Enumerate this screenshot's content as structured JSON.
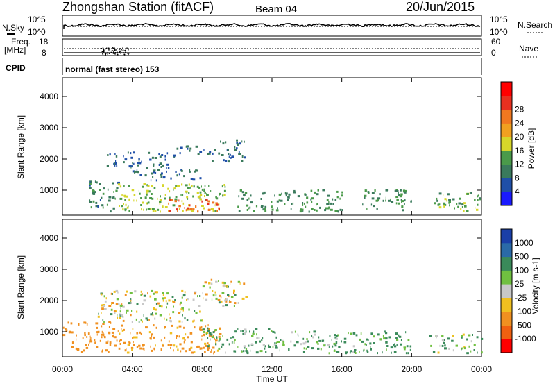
{
  "header": {
    "station": "Zhongshan Station (fitACF)",
    "beam": "Beam 04",
    "date": "20/Jun/2015"
  },
  "panels": {
    "nsky_label": "N.Sky",
    "nsky_top": "10^5",
    "nsky_bottom": "10^0",
    "nsearch_label": "N.Search",
    "nsearch_top": "10^5",
    "nsearch_bottom": "10^0",
    "freq_label": "Freq.",
    "freq_unit": "[MHz]",
    "freq_top": "18",
    "freq_bottom": "8",
    "nave_label": "Nave",
    "nave_top": "60",
    "nave_bottom": "0",
    "cpid_label": "CPID",
    "cpid_text": "normal (fast stereo) 153"
  },
  "chart_data": [
    {
      "type": "heatmap",
      "title": "",
      "ylabel": "Slant Range [km]",
      "xlabel": "",
      "ylim": [
        200,
        4600
      ],
      "xlim": [
        0,
        24
      ],
      "yticks": [
        "1000",
        "2000",
        "3000",
        "4000"
      ],
      "colorbar": {
        "label": "Power [dB]",
        "ticks": [
          "4",
          "8",
          "12",
          "16",
          "20",
          "24",
          "28"
        ],
        "colors": [
          "#1a1aff",
          "#1f4fa8",
          "#3a7a5c",
          "#4a9a4a",
          "#d6d62a",
          "#f0a020",
          "#f07820",
          "#e83020",
          "#ff0000"
        ]
      },
      "regions": [
        {
          "t": [
            1.5,
            3.2
          ],
          "range": [
            300,
            1300
          ],
          "power": 10
        },
        {
          "t": [
            3.0,
            9.5
          ],
          "range": [
            300,
            1200
          ],
          "power": 16
        },
        {
          "t": [
            6.0,
            9.0
          ],
          "range": [
            300,
            700
          ],
          "power": 28
        },
        {
          "t": [
            4.0,
            8.0
          ],
          "range": [
            1300,
            1700
          ],
          "power": 8
        },
        {
          "t": [
            2.5,
            6.5
          ],
          "range": [
            1700,
            2200
          ],
          "power": 8
        },
        {
          "t": [
            6.5,
            8.5
          ],
          "range": [
            2100,
            2400
          ],
          "power": 8
        },
        {
          "t": [
            8.5,
            10.5
          ],
          "range": [
            1900,
            2600
          ],
          "power": 8
        },
        {
          "t": [
            10.0,
            16.0
          ],
          "range": [
            300,
            1000
          ],
          "power": 12
        },
        {
          "t": [
            17.0,
            20.0
          ],
          "range": [
            300,
            1000
          ],
          "power": 12
        },
        {
          "t": [
            21.0,
            24.0
          ],
          "range": [
            300,
            900
          ],
          "power": 14
        }
      ]
    },
    {
      "type": "heatmap",
      "title": "",
      "ylabel": "Slant Range [km]",
      "xlabel": "Time UT",
      "ylim": [
        200,
        4600
      ],
      "xlim": [
        0,
        24
      ],
      "yticks": [
        "1000",
        "2000",
        "3000",
        "4000"
      ],
      "xticks": [
        "00:00",
        "04:00",
        "08:00",
        "12:00",
        "16:00",
        "20:00",
        "00:00"
      ],
      "colorbar": {
        "label": "Velocity [m s-1]",
        "ticks": [
          "1000",
          "500",
          "100",
          "25",
          "-25",
          "-100",
          "-500",
          "-1000"
        ],
        "colors": [
          "#1a3fa8",
          "#2a6aa8",
          "#3a8a5a",
          "#70c040",
          "#c8c8c8",
          "#f0c020",
          "#f09020",
          "#f06010",
          "#ff0000"
        ]
      },
      "regions": [
        {
          "t": [
            0.0,
            3.0
          ],
          "range": [
            300,
            1300
          ],
          "velocity": -300
        },
        {
          "t": [
            3.0,
            9.0
          ],
          "range": [
            300,
            1200
          ],
          "velocity": -200
        },
        {
          "t": [
            2.0,
            8.0
          ],
          "range": [
            1300,
            2300
          ],
          "velocity": 0
        },
        {
          "t": [
            8.0,
            10.5
          ],
          "range": [
            1800,
            2700
          ],
          "velocity": 0
        },
        {
          "t": [
            8.0,
            12.0
          ],
          "range": [
            300,
            1100
          ],
          "velocity": 150
        },
        {
          "t": [
            12.0,
            17.0
          ],
          "range": [
            300,
            1000
          ],
          "velocity": 120
        },
        {
          "t": [
            17.0,
            20.0
          ],
          "range": [
            300,
            1000
          ],
          "velocity": 200
        },
        {
          "t": [
            21.0,
            24.0
          ],
          "range": [
            300,
            900
          ],
          "velocity": 100
        }
      ]
    }
  ]
}
